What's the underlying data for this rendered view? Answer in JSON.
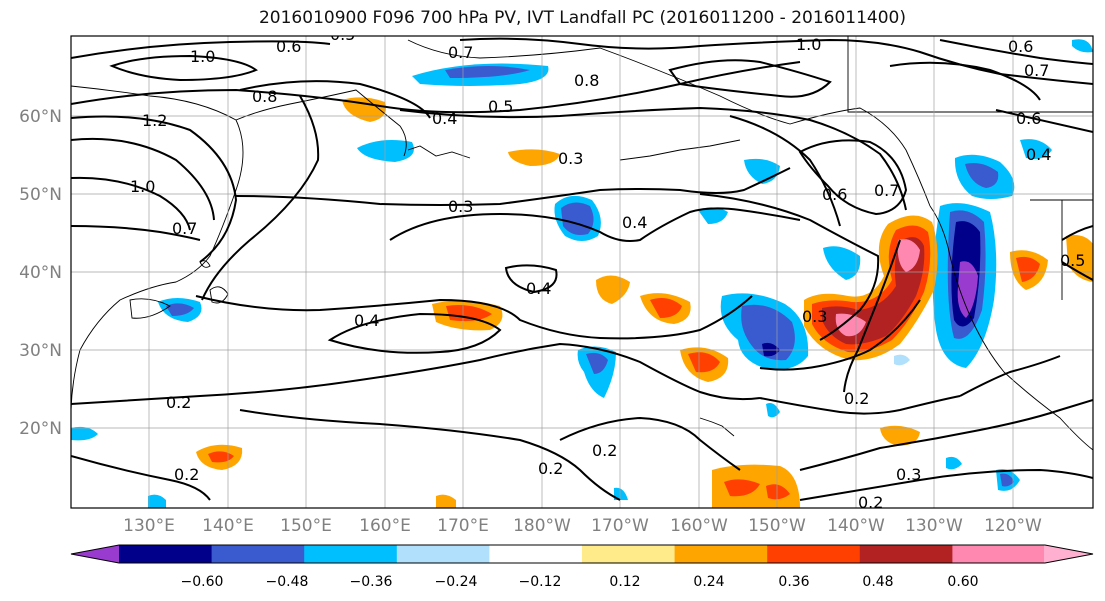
{
  "title": "2016010900 F096 700 hPa PV, IVT Landfall PC (2016011200 - 2016011400)",
  "map": {
    "lat_labels": [
      "60°N",
      "50°N",
      "40°N",
      "30°N",
      "20°N"
    ],
    "lon_labels": [
      "130°E",
      "140°E",
      "150°E",
      "160°E",
      "170°E",
      "180°W",
      "170°W",
      "160°W",
      "150°W",
      "140°W",
      "130°W",
      "120°W"
    ],
    "label_color": "#808080",
    "grid_color": "#a0a0a0"
  },
  "contours": {
    "labels": [
      "0.6",
      "0.5",
      "1.0",
      "0.7",
      "0.8",
      "0.5",
      "0.4",
      "1.0",
      "0.6",
      "0.7",
      "0.8",
      "1.2",
      "1.0",
      "0.7",
      "0.3",
      "0.3",
      "0.4",
      "0.4",
      "0.4",
      "0.6",
      "0.7",
      "0.6",
      "0.4",
      "0.5",
      "0.3",
      "0.2",
      "0.2",
      "0.2",
      "0.2",
      "0.2",
      "0.3",
      "0.2"
    ]
  },
  "colorbar": {
    "colors": [
      "#9a3bd0",
      "#00008b",
      "#3a5bd0",
      "#00bfff",
      "#b0e0fb",
      "#ffffff",
      "#ffeb8a",
      "#ffa500",
      "#ff4000",
      "#b22222",
      "#ff88b0",
      "#ffb0d0"
    ],
    "tick_labels": [
      "−0.60",
      "−0.48",
      "−0.36",
      "−0.24",
      "−0.12",
      "0.12",
      "0.24",
      "0.36",
      "0.48",
      "0.60"
    ]
  }
}
